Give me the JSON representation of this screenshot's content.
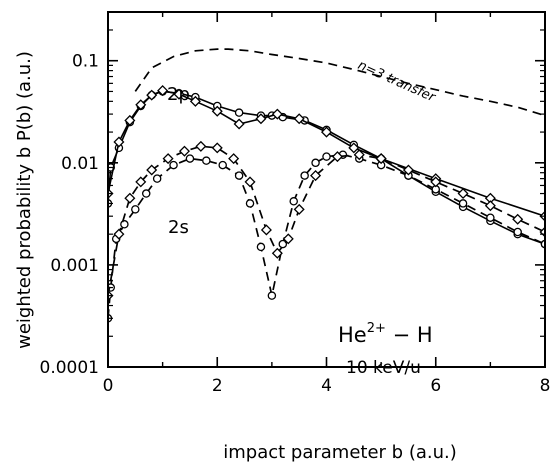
{
  "chart_data": {
    "type": "line",
    "xlabel": "impact parameter b (a.u.)",
    "ylabel": "weighted probability b P(b) (a.u.)",
    "xlim": [
      0,
      8
    ],
    "ylim": [
      0.0001,
      0.3
    ],
    "y_scale": "log",
    "x_ticks": [
      0,
      2,
      4,
      6,
      8
    ],
    "x_tick_labels": [
      "0",
      "2",
      "4",
      "6",
      "8"
    ],
    "y_ticks": [
      0.0001,
      0.001,
      0.01,
      0.1
    ],
    "y_tick_labels": [
      "0.0001",
      "0.001",
      "0.01",
      "0.1"
    ],
    "annotations": {
      "system": "He2+ − H",
      "system_base": "He",
      "system_sup": "2+",
      "system_tail": " − H",
      "energy": "10 keV/u",
      "label_2p": "2p",
      "label_2s": "2s",
      "label_n3": "n=3 transfer"
    },
    "series": [
      {
        "name": "n=3 transfer",
        "style": "dashed",
        "marker": "none",
        "x": [
          0.5,
          0.8,
          1.2,
          1.6,
          2.0,
          2.2,
          2.6,
          3.0,
          3.5,
          4.0,
          4.5,
          5.0,
          5.5,
          6.0,
          6.5,
          7.0,
          7.5,
          8.0
        ],
        "y": [
          0.05,
          0.085,
          0.11,
          0.125,
          0.13,
          0.13,
          0.125,
          0.115,
          0.105,
          0.095,
          0.082,
          0.07,
          0.06,
          0.052,
          0.045,
          0.04,
          0.035,
          0.029
        ]
      },
      {
        "name": "2p",
        "style": "solid",
        "marker": "circle",
        "x": [
          0.0,
          0.05,
          0.2,
          0.4,
          0.6,
          0.8,
          1.0,
          1.3,
          1.6,
          2.0,
          2.4,
          2.8,
          3.0,
          3.2,
          3.6,
          4.0,
          4.5,
          5.0,
          5.5,
          6.0,
          6.5,
          7.0,
          7.5,
          8.0
        ],
        "y": [
          0.004,
          0.009,
          0.014,
          0.025,
          0.036,
          0.046,
          0.05,
          0.048,
          0.044,
          0.036,
          0.031,
          0.029,
          0.029,
          0.028,
          0.026,
          0.021,
          0.015,
          0.011,
          0.0075,
          0.0052,
          0.0037,
          0.0027,
          0.002,
          0.0016
        ]
      },
      {
        "name": "2p",
        "style": "solid",
        "marker": "diamond",
        "x": [
          0.0,
          0.2,
          0.4,
          0.6,
          0.8,
          1.0,
          1.3,
          1.6,
          2.0,
          2.4,
          2.8,
          3.1,
          3.5,
          4.0,
          4.5,
          5.0,
          6.0,
          7.0,
          8.0
        ],
        "y": [
          0.005,
          0.016,
          0.026,
          0.037,
          0.046,
          0.051,
          0.047,
          0.04,
          0.032,
          0.024,
          0.027,
          0.03,
          0.027,
          0.02,
          0.014,
          0.011,
          0.007,
          0.0045,
          0.003
        ]
      },
      {
        "name": "2s",
        "style": "dashed",
        "marker": "circle",
        "x": [
          0.0,
          0.05,
          0.15,
          0.3,
          0.5,
          0.7,
          0.9,
          1.2,
          1.5,
          1.8,
          2.1,
          2.4,
          2.6,
          2.8,
          3.0,
          3.2,
          3.4,
          3.6,
          3.8,
          4.0,
          4.3,
          4.6,
          5.0,
          5.5,
          6.0,
          6.5,
          7.0,
          7.5,
          8.0
        ],
        "y": [
          0.0003,
          0.0006,
          0.0018,
          0.0025,
          0.0035,
          0.005,
          0.007,
          0.0095,
          0.011,
          0.0105,
          0.0095,
          0.0075,
          0.004,
          0.0015,
          0.0005,
          0.0016,
          0.0042,
          0.0075,
          0.01,
          0.0115,
          0.012,
          0.011,
          0.0095,
          0.0075,
          0.0055,
          0.004,
          0.0029,
          0.0021,
          0.0016
        ]
      },
      {
        "name": "2s",
        "style": "dashed",
        "marker": "diamond",
        "x": [
          0.0,
          0.2,
          0.4,
          0.6,
          0.8,
          1.1,
          1.4,
          1.7,
          2.0,
          2.3,
          2.6,
          2.9,
          3.1,
          3.3,
          3.5,
          3.8,
          4.2,
          4.6,
          5.0,
          5.5,
          6.0,
          6.5,
          7.0,
          7.5,
          8.0
        ],
        "y": [
          0.0005,
          0.002,
          0.0045,
          0.0065,
          0.0085,
          0.011,
          0.013,
          0.0145,
          0.014,
          0.011,
          0.0065,
          0.0022,
          0.0013,
          0.0018,
          0.0035,
          0.0075,
          0.0115,
          0.012,
          0.011,
          0.0085,
          0.0065,
          0.005,
          0.0038,
          0.0028,
          0.0021
        ]
      }
    ]
  }
}
